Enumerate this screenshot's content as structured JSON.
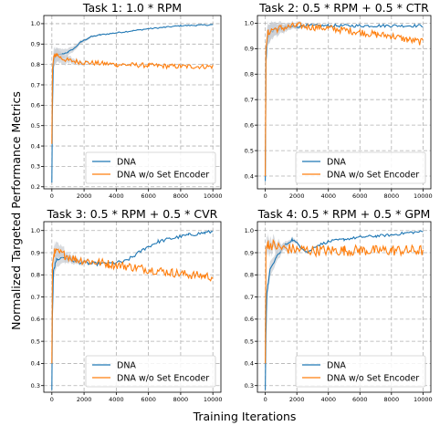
{
  "figure": {
    "xlabel": "Training Iterations",
    "ylabel": "Normalized Targeted Performance Metrics",
    "colors": {
      "dna": "#1f77b4",
      "dna_wo": "#ff7f0e",
      "band": "#c8ccd2"
    }
  },
  "chart_data": [
    {
      "type": "line",
      "title": "Task 1: 1.0 * RPM",
      "xlim": [
        -500,
        10500
      ],
      "ylim": [
        0.19,
        1.04
      ],
      "xticks": [
        0,
        2000,
        4000,
        6000,
        8000,
        10000
      ],
      "yticks": [
        0.2,
        0.3,
        0.4,
        0.5,
        0.6,
        0.7,
        0.8,
        0.9,
        1.0
      ],
      "legend": "lower-right",
      "series": [
        {
          "name": "DNA",
          "points": [
            [
              0,
              0.22
            ],
            [
              30,
              0.55
            ],
            [
              80,
              0.78
            ],
            [
              150,
              0.83
            ],
            [
              300,
              0.845
            ],
            [
              600,
              0.85
            ],
            [
              1000,
              0.86
            ],
            [
              1400,
              0.88
            ],
            [
              1800,
              0.91
            ],
            [
              2400,
              0.935
            ],
            [
              3000,
              0.945
            ],
            [
              4000,
              0.955
            ],
            [
              5000,
              0.965
            ],
            [
              6000,
              0.975
            ],
            [
              7000,
              0.982
            ],
            [
              8000,
              0.99
            ],
            [
              9000,
              0.992
            ],
            [
              10000,
              0.995
            ]
          ]
        },
        {
          "name": "DNA w/o Set Encoder",
          "points": [
            [
              0,
              0.41
            ],
            [
              40,
              0.78
            ],
            [
              120,
              0.84
            ],
            [
              300,
              0.85
            ],
            [
              600,
              0.83
            ],
            [
              1000,
              0.82
            ],
            [
              2000,
              0.81
            ],
            [
              4000,
              0.8
            ],
            [
              6000,
              0.795
            ],
            [
              8000,
              0.79
            ],
            [
              10000,
              0.79
            ]
          ]
        }
      ]
    },
    {
      "type": "line",
      "title": "Task 2: 0.5 * RPM + 0.5 * CTR",
      "xlim": [
        -500,
        10500
      ],
      "ylim": [
        0.35,
        1.03
      ],
      "xticks": [
        0,
        2000,
        4000,
        6000,
        8000,
        10000
      ],
      "yticks": [
        0.4,
        0.5,
        0.6,
        0.7,
        0.8,
        0.9,
        1.0
      ],
      "legend": "lower-right",
      "series": [
        {
          "name": "DNA",
          "points": [
            [
              0,
              0.38
            ],
            [
              40,
              0.85
            ],
            [
              150,
              0.95
            ],
            [
              400,
              0.97
            ],
            [
              800,
              0.975
            ],
            [
              1500,
              0.985
            ],
            [
              2500,
              0.99
            ],
            [
              4000,
              0.99
            ],
            [
              6000,
              0.99
            ],
            [
              8000,
              0.99
            ],
            [
              10000,
              0.99
            ]
          ]
        },
        {
          "name": "DNA w/o Set Encoder",
          "points": [
            [
              0,
              0.4
            ],
            [
              40,
              0.9
            ],
            [
              150,
              0.96
            ],
            [
              400,
              0.975
            ],
            [
              1000,
              0.98
            ],
            [
              2000,
              0.99
            ],
            [
              4000,
              0.98
            ],
            [
              6000,
              0.965
            ],
            [
              7000,
              0.955
            ],
            [
              8000,
              0.95
            ],
            [
              9000,
              0.935
            ],
            [
              10000,
              0.925
            ]
          ]
        }
      ]
    },
    {
      "type": "line",
      "title": "Task 3: 0.5 * RPM + 0.5 * CVR",
      "xlim": [
        -500,
        10500
      ],
      "ylim": [
        0.27,
        1.04
      ],
      "xticks": [
        0,
        2000,
        4000,
        6000,
        8000,
        10000
      ],
      "yticks": [
        0.3,
        0.4,
        0.5,
        0.6,
        0.7,
        0.8,
        0.9,
        1.0
      ],
      "legend": "lower-right",
      "series": [
        {
          "name": "DNA",
          "points": [
            [
              0,
              0.28
            ],
            [
              30,
              0.6
            ],
            [
              100,
              0.82
            ],
            [
              300,
              0.87
            ],
            [
              800,
              0.88
            ],
            [
              1500,
              0.86
            ],
            [
              2500,
              0.85
            ],
            [
              3500,
              0.85
            ],
            [
              4500,
              0.86
            ],
            [
              5000,
              0.88
            ],
            [
              5800,
              0.92
            ],
            [
              6600,
              0.95
            ],
            [
              7500,
              0.965
            ],
            [
              8500,
              0.98
            ],
            [
              9500,
              0.99
            ],
            [
              10000,
              0.995
            ]
          ]
        },
        {
          "name": "DNA w/o Set Encoder",
          "points": [
            [
              0,
              0.4
            ],
            [
              40,
              0.85
            ],
            [
              150,
              0.9
            ],
            [
              400,
              0.9
            ],
            [
              800,
              0.89
            ],
            [
              1500,
              0.87
            ],
            [
              2500,
              0.86
            ],
            [
              3500,
              0.85
            ],
            [
              4500,
              0.84
            ],
            [
              5500,
              0.83
            ],
            [
              6500,
              0.82
            ],
            [
              7500,
              0.81
            ],
            [
              8500,
              0.8
            ],
            [
              9500,
              0.795
            ],
            [
              10000,
              0.79
            ]
          ]
        }
      ]
    },
    {
      "type": "line",
      "title": "Task 4: 0.5 * RPM + 0.5 * GPM",
      "xlim": [
        -500,
        10500
      ],
      "ylim": [
        0.27,
        1.04
      ],
      "xticks": [
        0,
        2000,
        4000,
        6000,
        8000,
        10000
      ],
      "yticks": [
        0.3,
        0.4,
        0.5,
        0.6,
        0.7,
        0.8,
        0.9,
        1.0
      ],
      "legend": "lower-right",
      "series": [
        {
          "name": "DNA",
          "points": [
            [
              0,
              0.28
            ],
            [
              30,
              0.5
            ],
            [
              100,
              0.72
            ],
            [
              300,
              0.82
            ],
            [
              700,
              0.88
            ],
            [
              1200,
              0.93
            ],
            [
              1700,
              0.96
            ],
            [
              2200,
              0.93
            ],
            [
              2700,
              0.9
            ],
            [
              3200,
              0.93
            ],
            [
              4000,
              0.95
            ],
            [
              5000,
              0.96
            ],
            [
              6000,
              0.97
            ],
            [
              7000,
              0.975
            ],
            [
              8000,
              0.98
            ],
            [
              9000,
              0.99
            ],
            [
              10000,
              0.995
            ]
          ]
        },
        {
          "name": "DNA w/o Set Encoder",
          "points": [
            [
              0,
              0.4
            ],
            [
              40,
              0.92
            ],
            [
              150,
              0.94
            ],
            [
              500,
              0.935
            ],
            [
              1000,
              0.92
            ],
            [
              2000,
              0.915
            ],
            [
              3000,
              0.91
            ],
            [
              4000,
              0.91
            ],
            [
              5000,
              0.91
            ],
            [
              6000,
              0.91
            ],
            [
              7000,
              0.91
            ],
            [
              8000,
              0.91
            ],
            [
              9000,
              0.91
            ],
            [
              10000,
              0.91
            ]
          ]
        }
      ]
    }
  ]
}
